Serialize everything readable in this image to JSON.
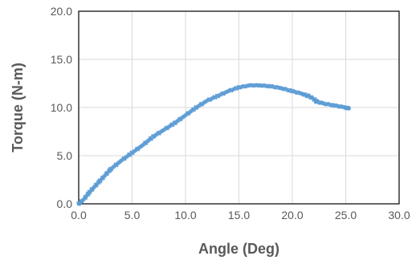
{
  "chart_data": {
    "type": "line",
    "title": "",
    "xlabel": "Angle (Deg)",
    "ylabel": "Torque (N-m)",
    "xlim": [
      0,
      30
    ],
    "ylim": [
      0,
      20
    ],
    "x_ticks": [
      "0.0",
      "5.0",
      "10.0",
      "15.0",
      "20.0",
      "25.0",
      "30.0"
    ],
    "y_ticks": [
      "0.0",
      "5.0",
      "10.0",
      "15.0",
      "20.0"
    ],
    "grid": true,
    "legend": "none",
    "series": [
      {
        "color": "#5b9bd5",
        "x": [
          0,
          0.5,
          1.0,
          1.5,
          2.0,
          2.5,
          3.0,
          4.0,
          5.0,
          6.0,
          7.0,
          8.0,
          9.0,
          10.0,
          11.0,
          12.0,
          13.0,
          14.0,
          15.0,
          16.0,
          17.0,
          18.0,
          19.0,
          20.0,
          21.0,
          21.5,
          22.0,
          22.3,
          23.0,
          24.0,
          25.0,
          25.3
        ],
        "y": [
          0,
          0.5,
          1.2,
          1.8,
          2.4,
          3.0,
          3.6,
          4.5,
          5.3,
          6.1,
          7.0,
          7.7,
          8.4,
          9.2,
          10.0,
          10.7,
          11.2,
          11.7,
          12.1,
          12.3,
          12.3,
          12.2,
          12.0,
          11.7,
          11.4,
          11.2,
          10.9,
          10.6,
          10.4,
          10.2,
          10.0,
          9.9
        ]
      }
    ]
  }
}
